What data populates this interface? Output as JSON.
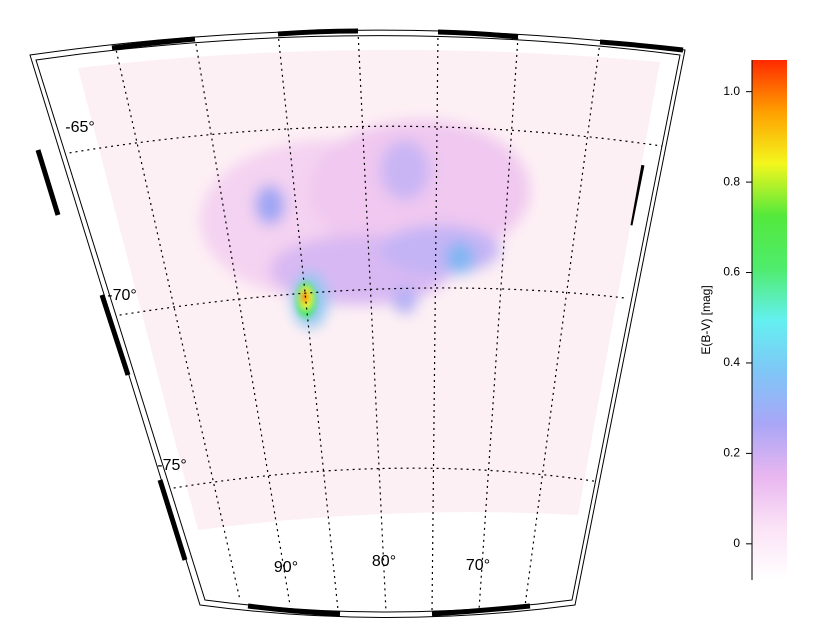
{
  "map": {
    "lat_labels": [
      "-65°",
      "-70°",
      "-75°"
    ],
    "lon_labels": [
      "90°",
      "80°",
      "70°"
    ]
  },
  "colorbar": {
    "label": "E(B-V) [mag]",
    "lim": [
      -0.08,
      1.07
    ],
    "ticks": [
      0,
      0.2,
      0.4,
      0.6,
      0.8,
      {
        "value": 1,
        "label": "1.0"
      }
    ],
    "colors": [
      "#ffffff",
      "#fbe3f6",
      "#e8b6f0",
      "#a9a6f7",
      "#7fc6f7",
      "#64f0f0",
      "#4fec6c",
      "#53e93c",
      "#f3f71d",
      "#ffa000",
      "#ff2a00"
    ]
  }
}
